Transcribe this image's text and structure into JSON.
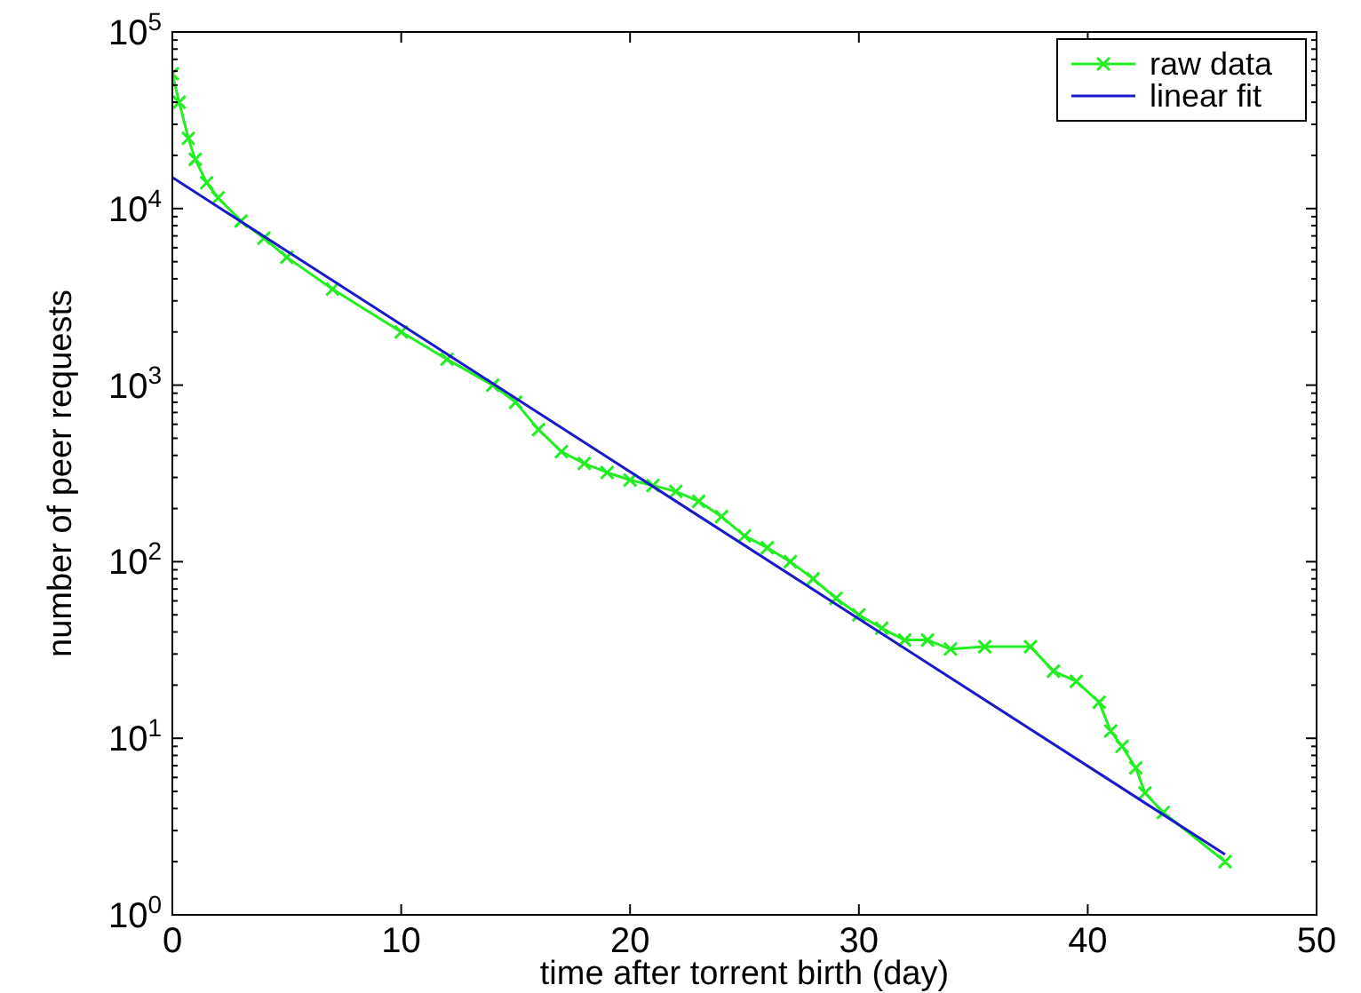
{
  "chart_data": {
    "type": "line",
    "xlabel": "time after torrent birth (day)",
    "ylabel": "number of peer requests",
    "log": "y",
    "xlim": [
      0,
      50
    ],
    "xticks": [
      0,
      10,
      20,
      30,
      40,
      50
    ],
    "ylim": [
      1,
      100000
    ],
    "yticks": [
      {
        "value": 1,
        "label": "10$^{0}$"
      },
      {
        "value": 2,
        "label": null
      },
      {
        "value": 3,
        "label": null
      },
      {
        "value": 4,
        "label": null
      },
      {
        "value": 5,
        "label": null
      },
      {
        "value": 6,
        "label": null
      },
      {
        "value": 7,
        "label": null
      },
      {
        "value": 8,
        "label": null
      },
      {
        "value": 9,
        "label": null
      },
      {
        "value": 10,
        "label": "10$^{1}$"
      },
      {
        "value": 20,
        "label": null
      },
      {
        "value": 30,
        "label": null
      },
      {
        "value": 40,
        "label": null
      },
      {
        "value": 50,
        "label": null
      },
      {
        "value": 60,
        "label": null
      },
      {
        "value": 70,
        "label": null
      },
      {
        "value": 80,
        "label": null
      },
      {
        "value": 90,
        "label": null
      },
      {
        "value": 100,
        "label": "10$^{2}$"
      },
      {
        "value": 200,
        "label": null
      },
      {
        "value": 300,
        "label": null
      },
      {
        "value": 400,
        "label": null
      },
      {
        "value": 500,
        "label": null
      },
      {
        "value": 600,
        "label": null
      },
      {
        "value": 700,
        "label": null
      },
      {
        "value": 800,
        "label": null
      },
      {
        "value": 900,
        "label": null
      },
      {
        "value": 1000,
        "label": "10$^{3}$"
      },
      {
        "value": 2000,
        "label": null
      },
      {
        "value": 3000,
        "label": null
      },
      {
        "value": 4000,
        "label": null
      },
      {
        "value": 5000,
        "label": null
      },
      {
        "value": 6000,
        "label": null
      },
      {
        "value": 7000,
        "label": null
      },
      {
        "value": 8000,
        "label": null
      },
      {
        "value": 9000,
        "label": null
      },
      {
        "value": 10000,
        "label": "10$^{4}$"
      },
      {
        "value": 20000,
        "label": null
      },
      {
        "value": 30000,
        "label": null
      },
      {
        "value": 40000,
        "label": null
      },
      {
        "value": 50000,
        "label": null
      },
      {
        "value": 60000,
        "label": null
      },
      {
        "value": 70000,
        "label": null
      },
      {
        "value": 80000,
        "label": null
      },
      {
        "value": 90000,
        "label": null
      },
      {
        "value": 100000,
        "label": "10$^{5}$"
      }
    ],
    "grid": false,
    "legend": "top right",
    "series": [
      {
        "name": "raw data",
        "color": "#22ee22",
        "marker": "cross",
        "x": [
          0,
          0.3,
          0.7,
          1,
          1.5,
          2,
          3,
          4,
          5,
          7,
          10,
          12,
          14,
          15,
          16,
          17,
          18,
          19,
          20,
          21,
          22,
          23,
          24,
          25,
          26,
          27,
          28,
          29,
          30,
          31,
          32,
          33,
          34,
          35.5,
          37.5,
          38.5,
          39.5,
          40.5,
          41,
          41.5,
          42.1,
          42.5,
          43.3,
          46
        ],
        "values": [
          58000,
          40000,
          25000,
          19000,
          14000,
          11500,
          8500,
          6800,
          5300,
          3500,
          2000,
          1400,
          1000,
          800,
          560,
          420,
          360,
          320,
          290,
          270,
          250,
          220,
          180,
          140,
          120,
          100,
          80,
          62,
          50,
          42,
          36,
          36,
          32,
          33,
          33,
          24,
          21,
          16,
          11,
          9,
          6.8,
          4.9,
          3.8,
          2.0
        ]
      },
      {
        "name": "linear fit",
        "color": "#1a1acc",
        "marker": "none",
        "x": [
          0,
          46
        ],
        "values": [
          15000,
          2.2
        ]
      }
    ]
  }
}
